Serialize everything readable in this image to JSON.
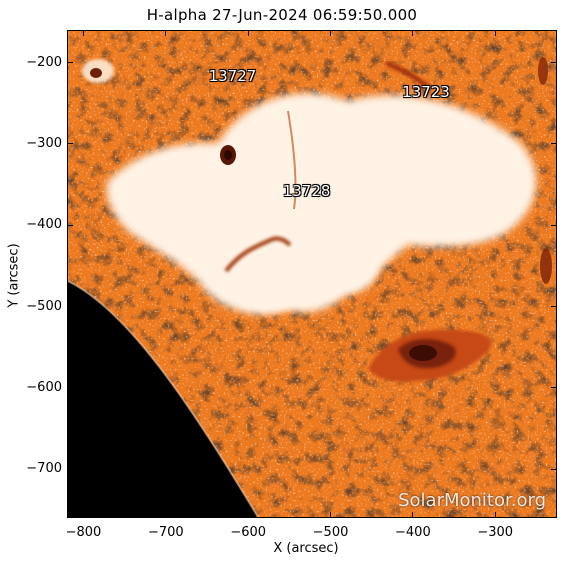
{
  "title": "H-alpha 27-Jun-2024 06:59:50.000",
  "x_axis": {
    "label": "X (arcsec)",
    "range": [
      -820,
      -225
    ],
    "ticks": [
      {
        "value": -800,
        "label": "−800"
      },
      {
        "value": -700,
        "label": "−700"
      },
      {
        "value": -600,
        "label": "−600"
      },
      {
        "value": -500,
        "label": "−500"
      },
      {
        "value": -400,
        "label": "−400"
      },
      {
        "value": -300,
        "label": "−300"
      }
    ]
  },
  "y_axis": {
    "label": "Y (arcsec)",
    "range": [
      -760,
      -160
    ],
    "ticks": [
      {
        "value": -200,
        "label": "−200"
      },
      {
        "value": -300,
        "label": "−300"
      },
      {
        "value": -400,
        "label": "−400"
      },
      {
        "value": -500,
        "label": "−500"
      },
      {
        "value": -600,
        "label": "−600"
      },
      {
        "value": -700,
        "label": "−700"
      }
    ]
  },
  "active_regions": [
    {
      "number": "13727",
      "x": -625,
      "y": -216
    },
    {
      "number": "13723",
      "x": -390,
      "y": -236
    },
    {
      "number": "13728",
      "x": -535,
      "y": -358
    }
  ],
  "watermark": "SolarMonitor.org",
  "colors": {
    "chromosphere": "#ee7a20",
    "bright": "#fff1e2",
    "dark": "#6e1f08",
    "limb_background": "#000000",
    "label_text": "#ffffff"
  }
}
